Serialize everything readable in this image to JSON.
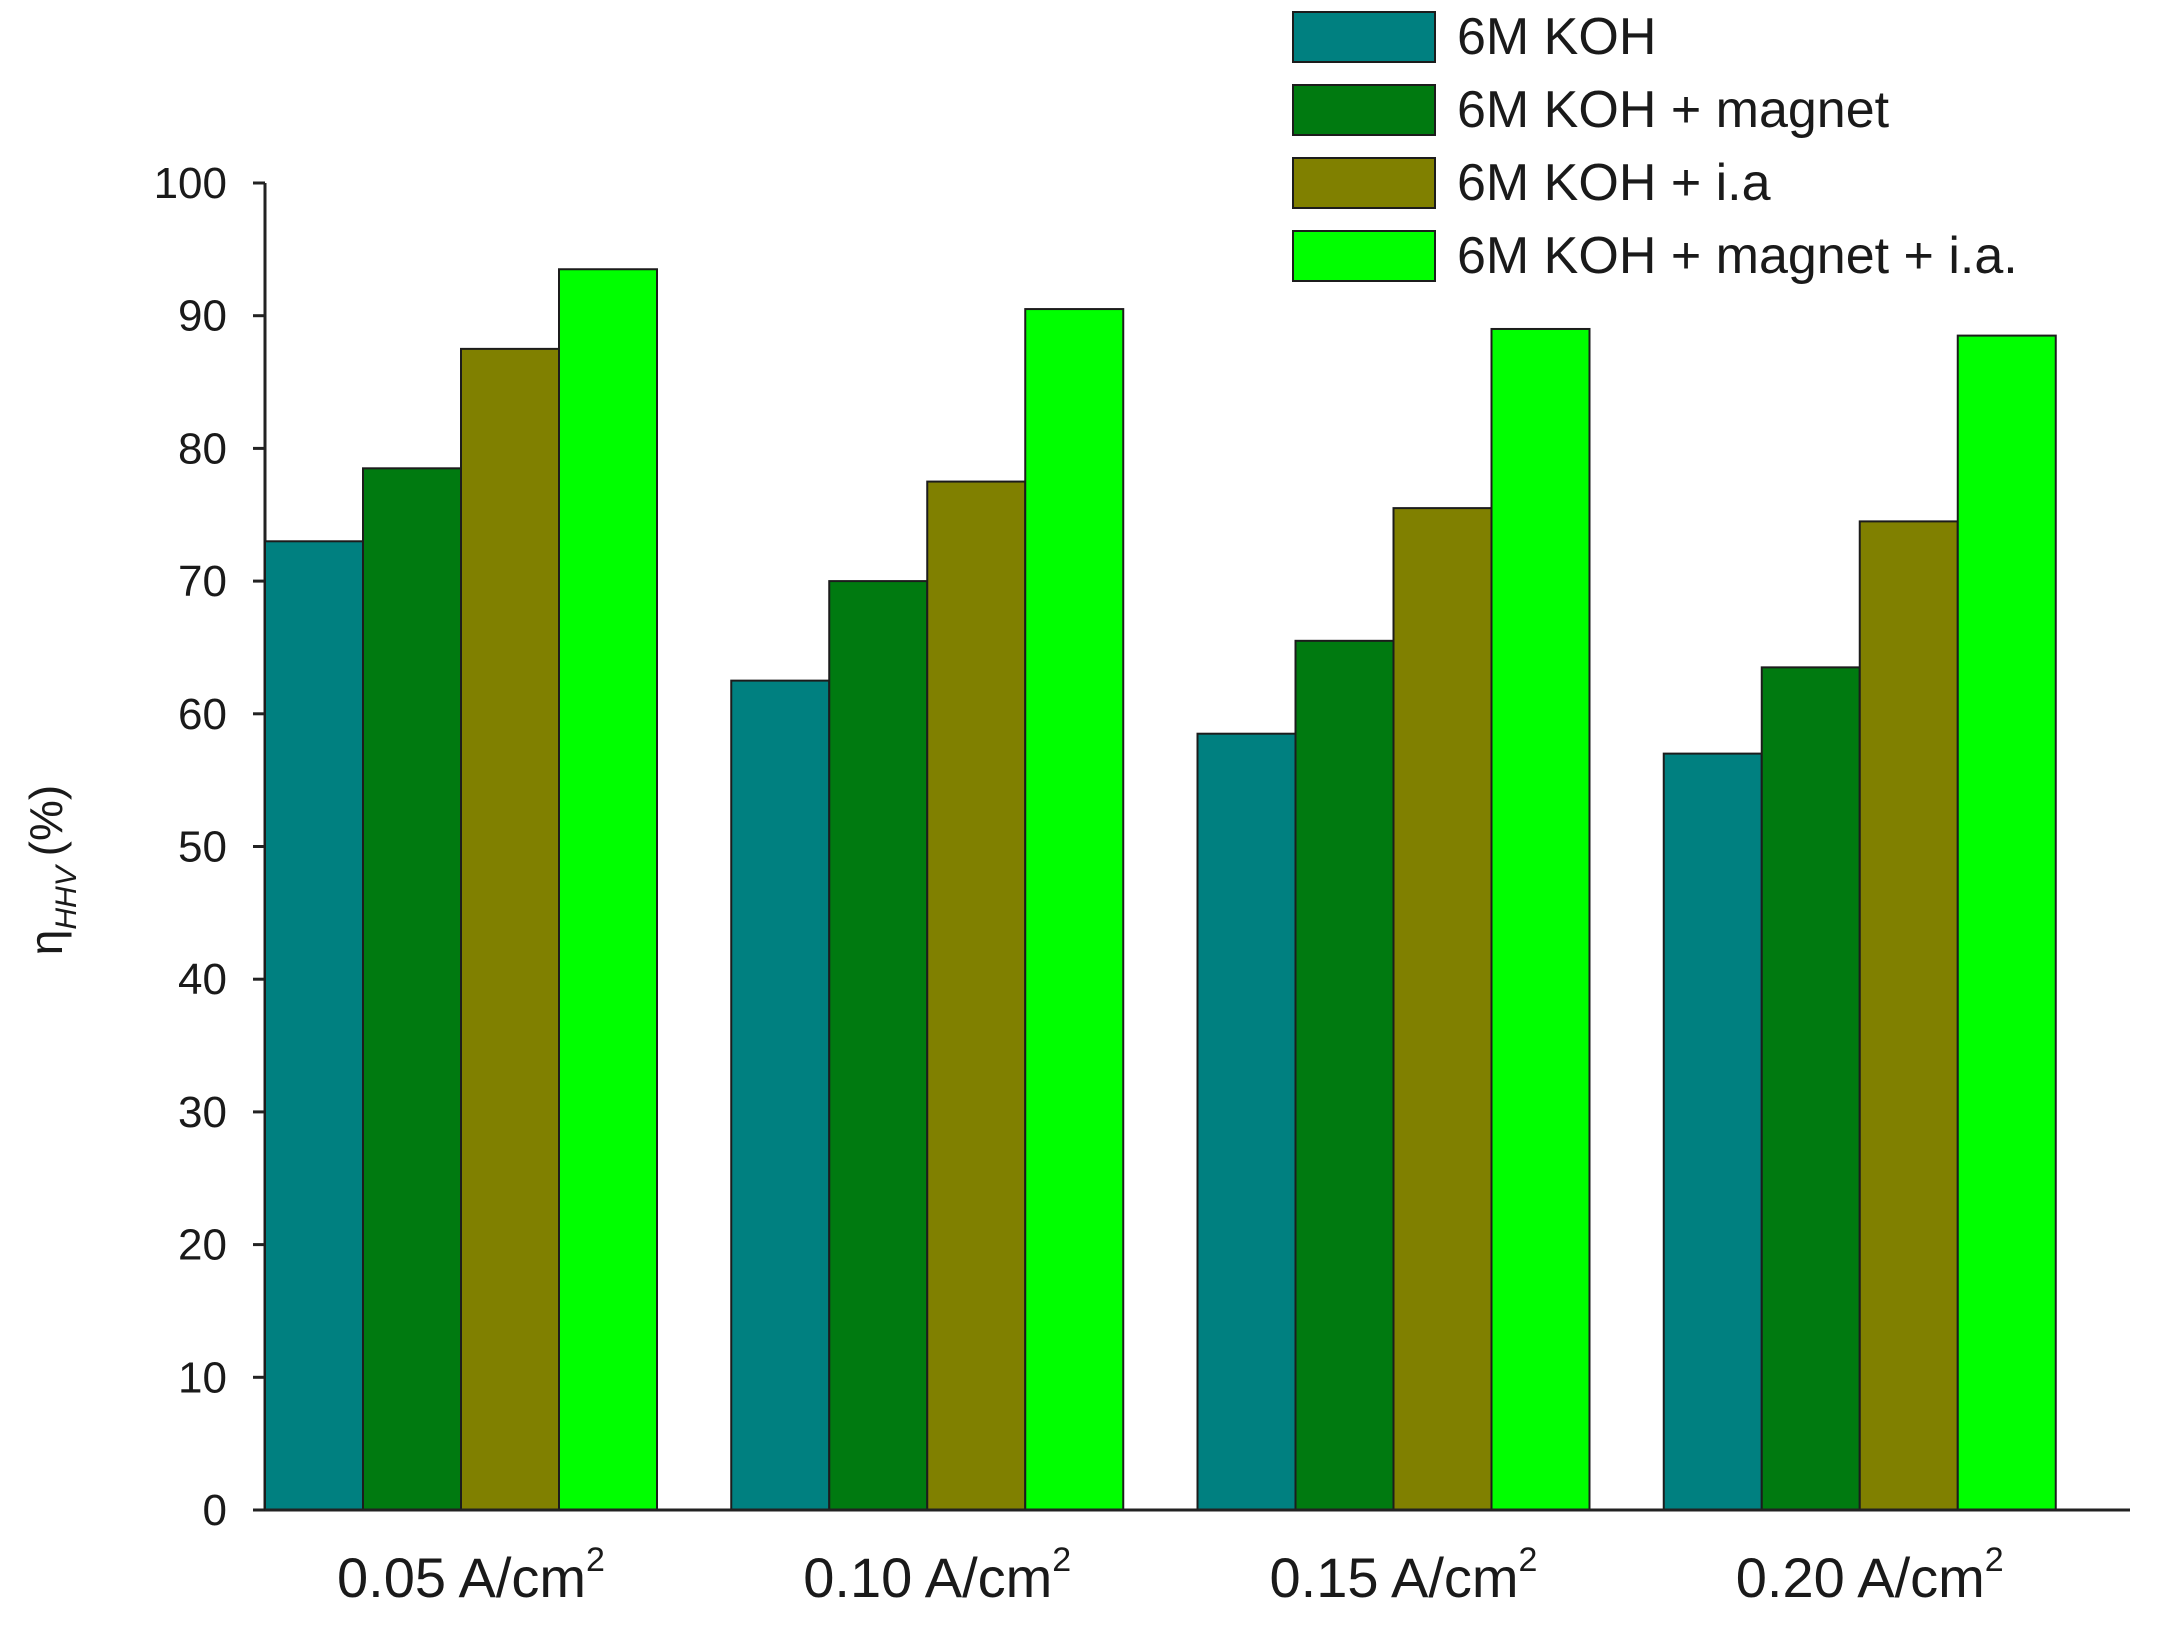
{
  "chart_data": {
    "type": "bar",
    "categories": [
      {
        "base": "0.05 A/cm",
        "sup": "2"
      },
      {
        "base": "0.10 A/cm",
        "sup": "2"
      },
      {
        "base": "0.15 A/cm",
        "sup": "2"
      },
      {
        "base": "0.20 A/cm",
        "sup": "2"
      }
    ],
    "series": [
      {
        "name": "6M KOH",
        "color": "#008080",
        "values": [
          73,
          62.5,
          58.5,
          57
        ]
      },
      {
        "name": "6M KOH + magnet",
        "color": "#007A10",
        "values": [
          78.5,
          70,
          65.5,
          63.5
        ]
      },
      {
        "name": "6M KOH + i.a",
        "color": "#808000",
        "values": [
          87.5,
          77.5,
          75.5,
          74.5
        ]
      },
      {
        "name": "6M KOH + magnet + i.a.",
        "color": "#00FF00",
        "values": [
          93.5,
          90.5,
          89,
          88.5
        ]
      }
    ],
    "ylabel": {
      "symbol": "η",
      "sub": "HHV",
      "unit": "(%)"
    },
    "ylim": [
      0,
      100
    ],
    "yticks": [
      0,
      10,
      20,
      30,
      40,
      50,
      60,
      70,
      80,
      90,
      100
    ],
    "grid": false,
    "legend_position": "top-right"
  }
}
